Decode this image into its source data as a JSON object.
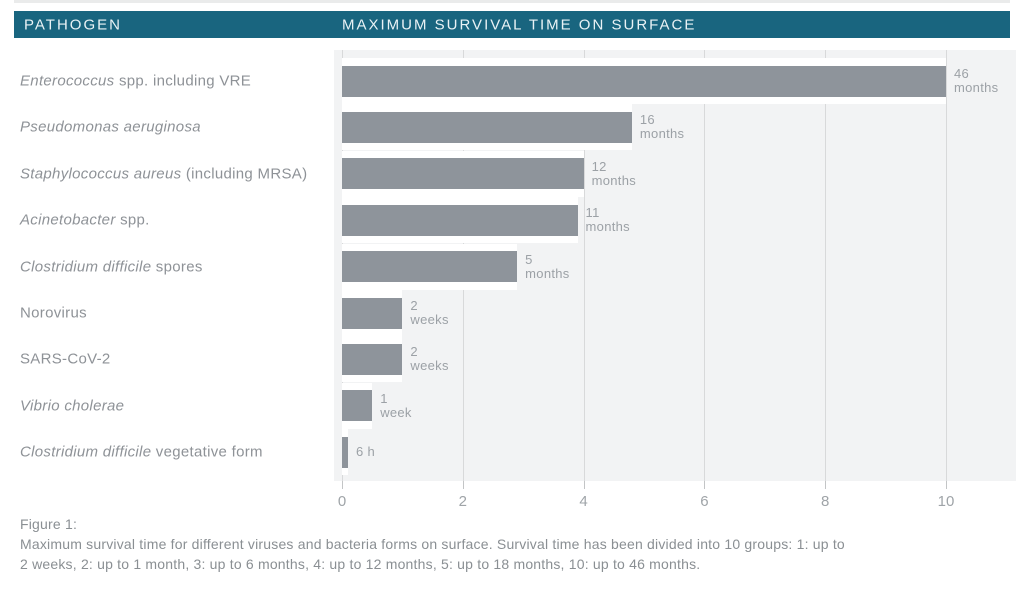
{
  "header": {
    "left": "PATHOGEN",
    "right": "MAXIMUM SURVIVAL TIME ON SURFACE"
  },
  "colors": {
    "header_bg": "#19657F",
    "header_text": "#E9F2F5",
    "bar": "#8E949B",
    "plot_bg": "#F2F3F4",
    "gridline": "#D8D9DA",
    "label_text": "#8E9297",
    "value_text": "#9CA1A6",
    "tick_text": "#9FA4A8",
    "caption_text": "#8A8F93"
  },
  "rows": [
    {
      "label_segments": [
        {
          "text": "Enterococcus",
          "italic": true
        },
        {
          "text": " spp. including VRE",
          "italic": false
        }
      ],
      "value_label_lines": [
        "46",
        "months"
      ]
    },
    {
      "label_segments": [
        {
          "text": "Pseudomonas aeruginosa",
          "italic": true
        }
      ],
      "value_label_lines": [
        "16",
        "months"
      ]
    },
    {
      "label_segments": [
        {
          "text": "Staphylococcus aureus",
          "italic": true
        },
        {
          "text": "  (including MRSA)",
          "italic": false
        }
      ],
      "value_label_lines": [
        "12",
        "months"
      ]
    },
    {
      "label_segments": [
        {
          "text": "Acinetobacter",
          "italic": true
        },
        {
          "text": " spp.",
          "italic": false
        }
      ],
      "value_label_lines": [
        "11",
        "months"
      ]
    },
    {
      "label_segments": [
        {
          "text": "Clostridium difficile",
          "italic": true
        },
        {
          "text": " spores",
          "italic": false
        }
      ],
      "value_label_lines": [
        "5",
        "months"
      ]
    },
    {
      "label_segments": [
        {
          "text": "Norovirus",
          "italic": false
        }
      ],
      "value_label_lines": [
        "2",
        "weeks"
      ]
    },
    {
      "label_segments": [
        {
          "text": "SARS-CoV-2",
          "italic": false
        }
      ],
      "value_label_lines": [
        "2",
        "weeks"
      ]
    },
    {
      "label_segments": [
        {
          "text": "Vibrio cholerae",
          "italic": true
        }
      ],
      "value_label_lines": [
        "1",
        "week"
      ]
    },
    {
      "label_segments": [
        {
          "text": "Clostridium difficile",
          "italic": true
        },
        {
          "text": " vegetative form",
          "italic": false
        }
      ],
      "value_label_lines": [
        "6 h"
      ]
    }
  ],
  "caption": {
    "title": "Figure 1:",
    "body_lines": [
      "Maximum survival time for different viruses and bacteria forms on surface. Survival time has been divided into 10 groups: 1: up to",
      "2 weeks, 2: up to 1 month, 3: up to 6 months, 4: up to 12 months, 5: up to 18 months, 10: up to 46 months."
    ]
  },
  "chart_data": {
    "type": "bar",
    "orientation": "horizontal",
    "title": "MAXIMUM SURVIVAL TIME ON SURFACE",
    "categories": [
      "Enterococcus spp. including VRE",
      "Pseudomonas aeruginosa",
      "Staphylococcus aureus (including MRSA)",
      "Acinetobacter spp.",
      "Clostridium difficile spores",
      "Norovirus",
      "SARS-CoV-2",
      "Vibrio cholerae",
      "Clostridium difficile vegetative form"
    ],
    "values": [
      10,
      4.8,
      4.0,
      3.9,
      2.9,
      1.0,
      1.0,
      0.5,
      0.1
    ],
    "data_labels": [
      "46 months",
      "16 months",
      "12 months",
      "11 months",
      "5 months",
      "2 weeks",
      "2 weeks",
      "1 week",
      "6 h"
    ],
    "xlabel": "",
    "ylabel": "",
    "xlim": [
      0,
      11.2
    ],
    "xticks": [
      0,
      2,
      4,
      6,
      8,
      10
    ],
    "grid": true,
    "legend": false
  }
}
